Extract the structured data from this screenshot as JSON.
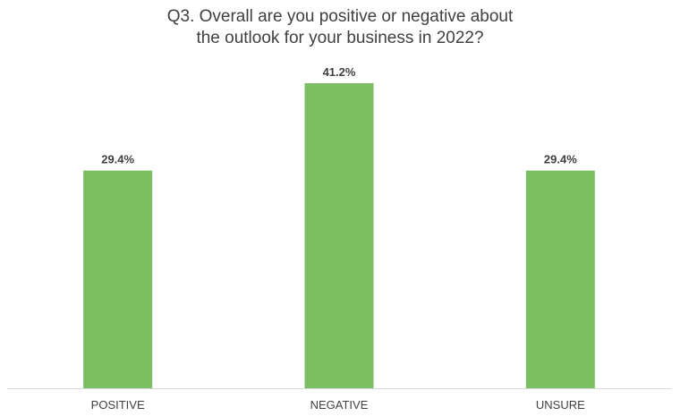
{
  "chart_data": {
    "type": "bar",
    "title_lines": [
      "Q3. Overall are you positive or negative about",
      "the outlook for your business in 2022?"
    ],
    "categories": [
      "POSITIVE",
      "NEGATIVE",
      "UNSURE"
    ],
    "values": [
      29.4,
      41.2,
      29.4
    ],
    "data_labels": [
      "29.4%",
      "41.2%",
      "29.4%"
    ],
    "value_unit": "%",
    "ylim": [
      0,
      50
    ],
    "y_axis_visible": false,
    "gridlines": false,
    "legend": "none",
    "bar_color": "#7BBF62",
    "axis_line_color": "#D9D9D9",
    "label_color": "#404040"
  }
}
